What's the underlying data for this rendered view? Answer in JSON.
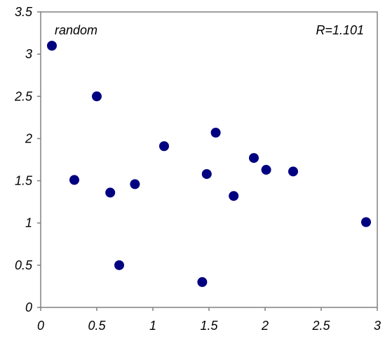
{
  "chart_data": {
    "type": "scatter",
    "title": "",
    "xlabel": "",
    "ylabel": "",
    "xlim": [
      0,
      3
    ],
    "ylim": [
      0,
      3.5
    ],
    "x_ticks": [
      "0",
      "0.5",
      "1",
      "1.5",
      "2",
      "2.5",
      "3"
    ],
    "y_ticks": [
      "0",
      "0.5",
      "1",
      "1.5",
      "2",
      "2.5",
      "3",
      "3.5"
    ],
    "grid": false,
    "legend": "none",
    "annotations": {
      "top_left": "random",
      "top_right": "R=1.101"
    },
    "series": [
      {
        "color": "#000080",
        "points": [
          {
            "x": 0.1,
            "y": 3.1
          },
          {
            "x": 0.3,
            "y": 1.51
          },
          {
            "x": 0.5,
            "y": 2.5
          },
          {
            "x": 0.62,
            "y": 1.36
          },
          {
            "x": 0.7,
            "y": 0.5
          },
          {
            "x": 0.84,
            "y": 1.46
          },
          {
            "x": 1.1,
            "y": 1.91
          },
          {
            "x": 1.44,
            "y": 0.3
          },
          {
            "x": 1.48,
            "y": 1.58
          },
          {
            "x": 1.56,
            "y": 2.07
          },
          {
            "x": 1.72,
            "y": 1.32
          },
          {
            "x": 1.9,
            "y": 1.77
          },
          {
            "x": 2.01,
            "y": 1.63
          },
          {
            "x": 2.25,
            "y": 1.61
          },
          {
            "x": 2.9,
            "y": 1.01
          }
        ]
      }
    ]
  }
}
